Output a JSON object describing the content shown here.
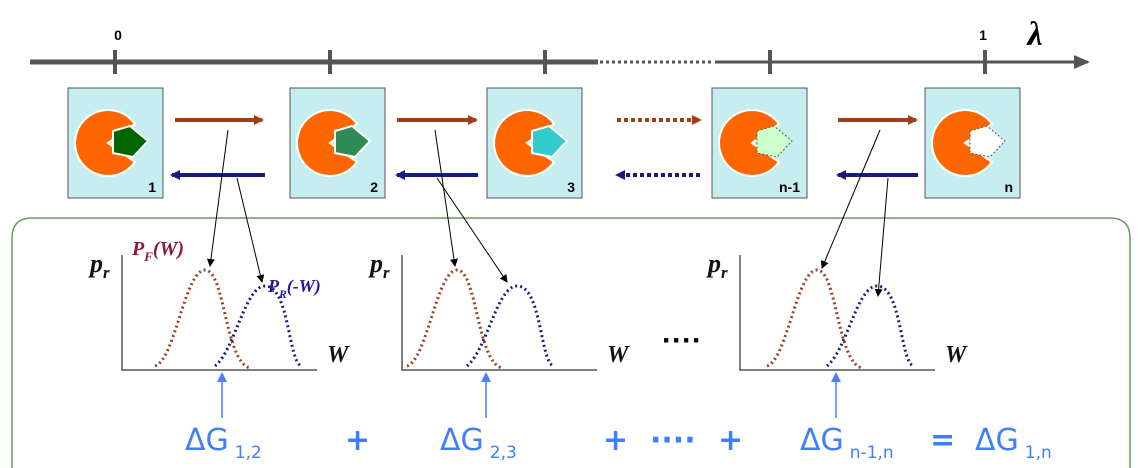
{
  "axis": {
    "ticks": [
      "0",
      "1"
    ],
    "label": "λ"
  },
  "states": [
    "1",
    "2",
    "3",
    "n-1",
    "n"
  ],
  "plots": [
    {
      "y_label": {
        "base": "p",
        "sub": "r"
      },
      "x_label": "W",
      "forward_label": {
        "base": "P",
        "sub": "F",
        "tail": "(W)"
      },
      "reverse_label": {
        "base": "P",
        "sub": "R",
        "tail": "(-W)"
      }
    },
    {
      "y_label": {
        "base": "p",
        "sub": "r"
      },
      "x_label": "W"
    },
    {
      "y_label": {
        "base": "p",
        "sub": "r"
      },
      "x_label": "W"
    }
  ],
  "ellipsis": "····",
  "equation": [
    {
      "symbol": "ΔG",
      "sub": "1,2"
    },
    {
      "op": "+"
    },
    {
      "symbol": "ΔG",
      "sub": "2,3"
    },
    {
      "op": "+"
    },
    {
      "op": "····"
    },
    {
      "op": "+"
    },
    {
      "symbol": "ΔG",
      "sub": "n-1,n"
    },
    {
      "op": "="
    },
    {
      "symbol": "ΔG",
      "sub": "1,n"
    }
  ]
}
